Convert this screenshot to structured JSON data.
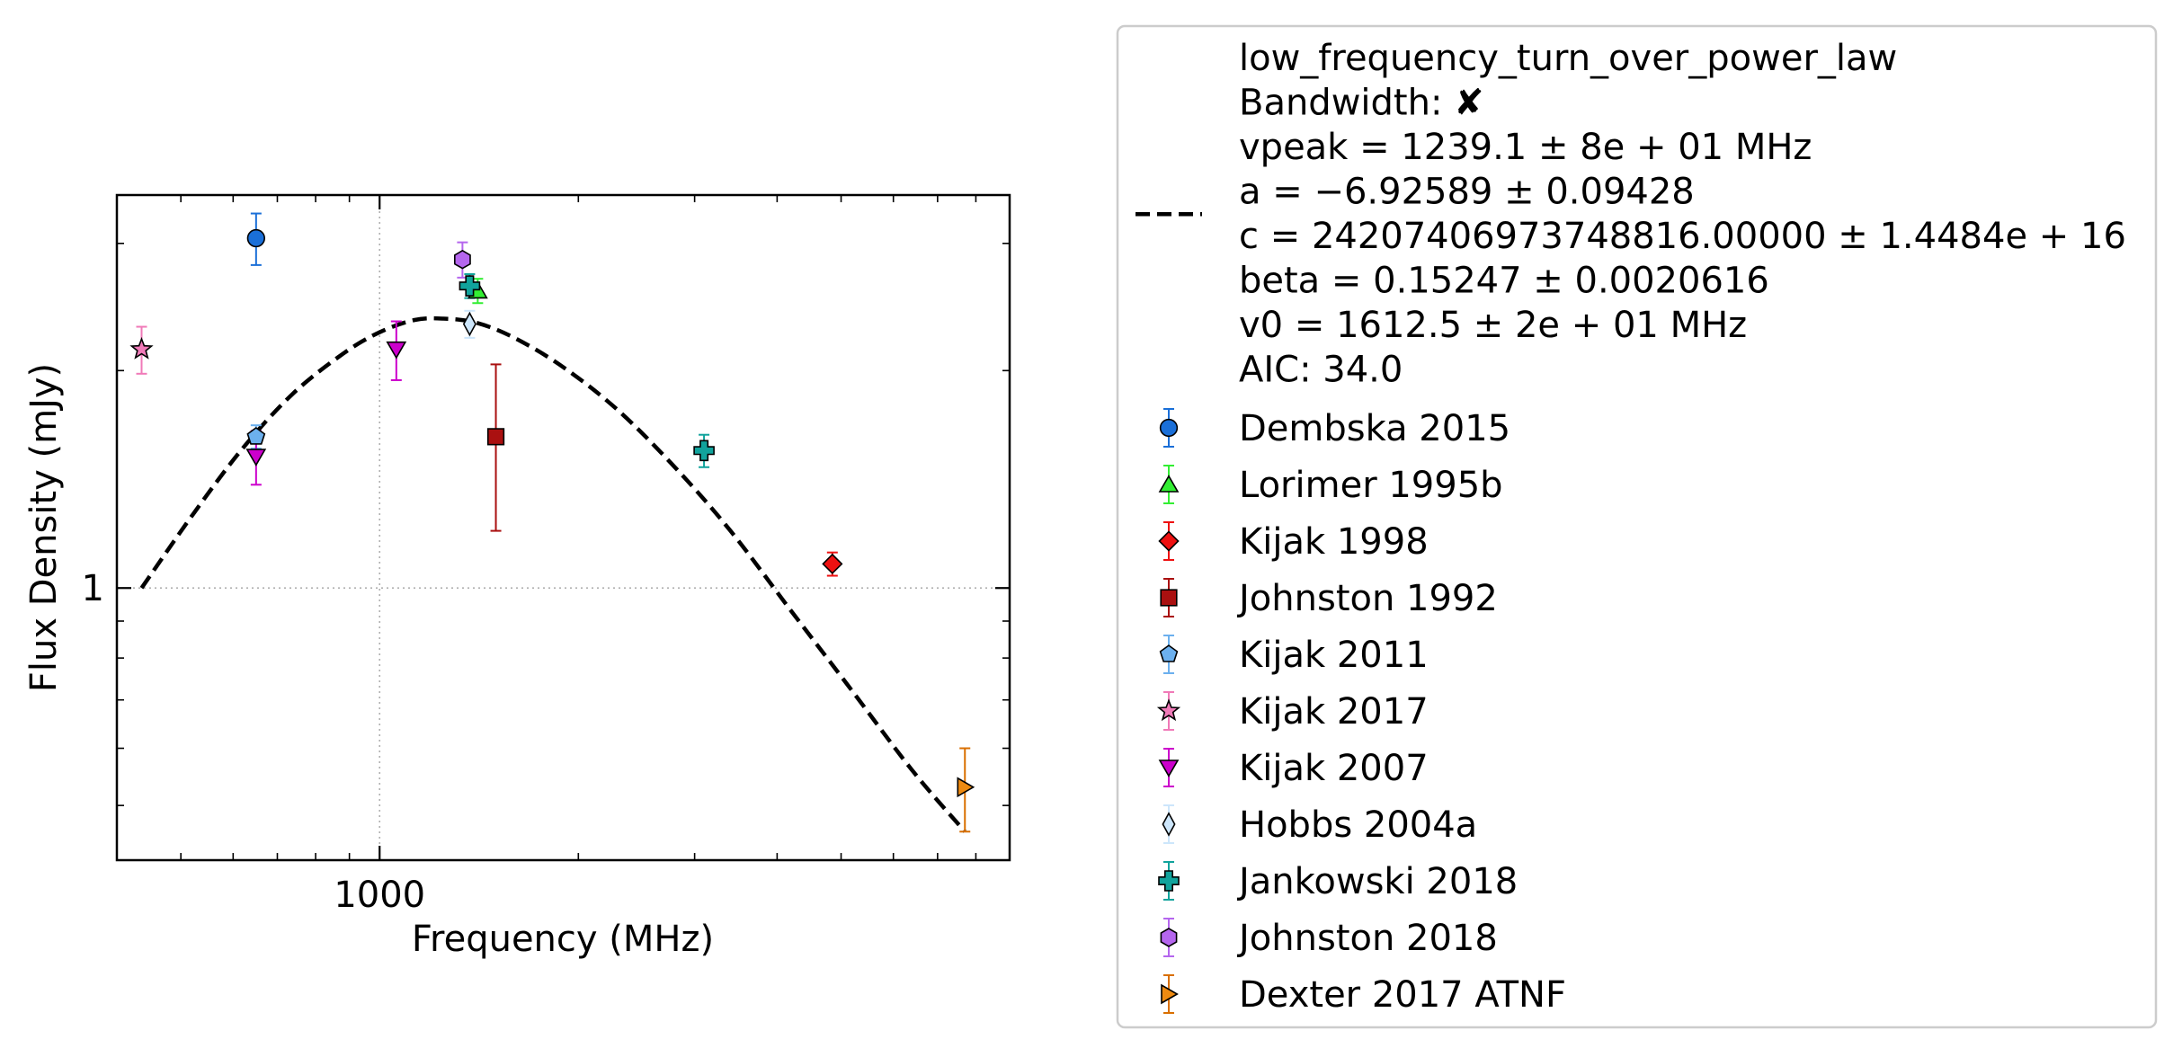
{
  "chart_data": {
    "type": "scatter",
    "xlabel": "Frequency (MHz)",
    "ylabel": "Flux Density (mJy)",
    "x_scale": "log",
    "y_scale": "log",
    "xlim": [
      400,
      9000
    ],
    "ylim": [
      0.42,
      3.5
    ],
    "x_ticks": [
      {
        "value": 1000,
        "label": "1000"
      }
    ],
    "y_ticks": [
      {
        "value": 1,
        "label": "1"
      }
    ],
    "grid": "major dotted",
    "legend_position": "outside-right",
    "fit": {
      "name": "low_frequency_turn_over_power_law",
      "style": "dashed",
      "color": "#000000",
      "lines": [
        "low_frequency_turn_over_power_law",
        "Bandwidth: ✘",
        "vpeak = 1239.1 ± 8e + 01 MHz",
        "a = −6.92589 ± 0.09428",
        "c = 24207406973748816.00000 ± 1.4484e + 16",
        "beta = 0.15247 ± 0.0020616",
        "v0 = 1612.5 ± 2e + 01 MHz",
        "AIC: 34.0"
      ],
      "x": [
        436,
        520,
        620,
        740,
        880,
        1000,
        1130,
        1250,
        1400,
        1600,
        1900,
        2300,
        2800,
        3400,
        4200,
        5200,
        6400,
        7700
      ],
      "y": [
        1.0,
        1.26,
        1.56,
        1.86,
        2.11,
        2.26,
        2.35,
        2.36,
        2.33,
        2.22,
        2.02,
        1.76,
        1.47,
        1.2,
        0.93,
        0.72,
        0.56,
        0.46
      ]
    },
    "series": [
      {
        "name": "Dembska 2015",
        "marker": "circle",
        "color": "#1a6fd8",
        "ecolor": "#1a6fd8",
        "points": [
          {
            "x": 650,
            "y": 3.05,
            "yerr": 0.25
          }
        ]
      },
      {
        "name": "Lorimer 1995b",
        "marker": "triangle-up",
        "color": "#33ee33",
        "ecolor": "#33ee33",
        "points": [
          {
            "x": 1408,
            "y": 2.58,
            "yerr": 0.1
          }
        ]
      },
      {
        "name": "Kijak 1998",
        "marker": "diamond",
        "color": "#ee1111",
        "ecolor": "#ee1111",
        "points": [
          {
            "x": 4850,
            "y": 1.08,
            "yerr": 0.04
          }
        ]
      },
      {
        "name": "Johnston 1992",
        "marker": "square",
        "color": "#aa1010",
        "ecolor": "#aa1010",
        "points": [
          {
            "x": 1500,
            "y": 1.62,
            "yerr": 0.42
          }
        ]
      },
      {
        "name": "Kijak 2011",
        "marker": "pentagon",
        "color": "#6cb0ee",
        "ecolor": "#6cb0ee",
        "points": [
          {
            "x": 650,
            "y": 1.62,
            "yerr": 0.06
          }
        ]
      },
      {
        "name": "Kijak 2017",
        "marker": "star",
        "color": "#f07ab8",
        "ecolor": "#f07ab8",
        "points": [
          {
            "x": 436,
            "y": 2.14,
            "yerr": 0.16
          }
        ]
      },
      {
        "name": "Kijak 2007",
        "marker": "triangle-down",
        "color": "#cc00cc",
        "ecolor": "#cc00cc",
        "points": [
          {
            "x": 650,
            "y": 1.52,
            "yerr": 0.13
          },
          {
            "x": 1060,
            "y": 2.14,
            "yerr": 0.2
          }
        ]
      },
      {
        "name": "Hobbs 2004a",
        "marker": "thin-diamond",
        "color": "#cde6fb",
        "ecolor": "#cde6fb",
        "points": [
          {
            "x": 1369,
            "y": 2.32,
            "yerr": 0.1
          }
        ]
      },
      {
        "name": "Jankowski 2018",
        "marker": "plus",
        "color": "#11a39c",
        "ecolor": "#11a39c",
        "points": [
          {
            "x": 1369,
            "y": 2.62,
            "yerr": 0.1
          },
          {
            "x": 3100,
            "y": 1.55,
            "yerr": 0.08
          }
        ]
      },
      {
        "name": "Johnston 2018",
        "marker": "hexagon",
        "color": "#b566ee",
        "ecolor": "#b566ee",
        "points": [
          {
            "x": 1335,
            "y": 2.85,
            "yerr": 0.16
          }
        ]
      },
      {
        "name": "Dexter 2017 ATNF",
        "marker": "triangle-right",
        "color": "#ee8a11",
        "ecolor": "#d96f00",
        "points": [
          {
            "x": 7700,
            "y": 0.53,
            "yerr": 0.07
          }
        ]
      }
    ]
  }
}
